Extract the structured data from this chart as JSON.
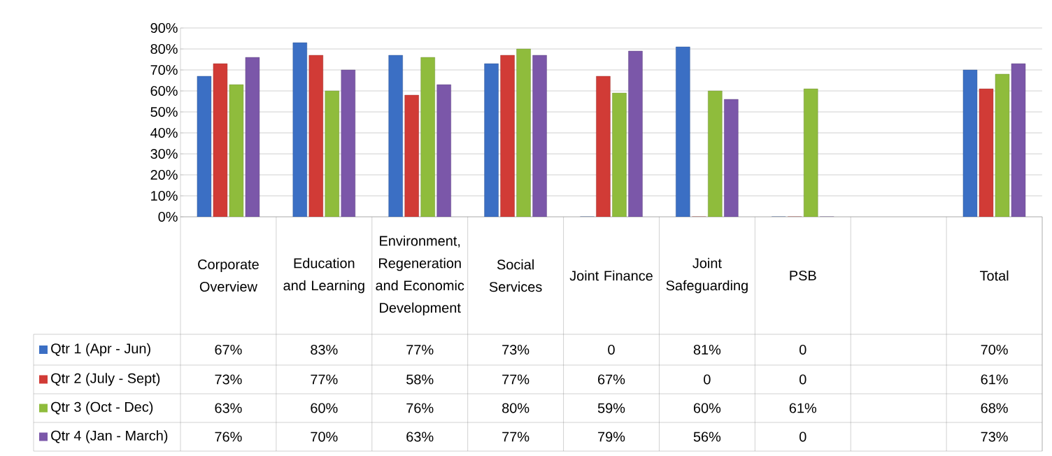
{
  "chart_data": {
    "type": "bar",
    "categories": [
      "Corporate Overview",
      "Education and Learning",
      "Environment, Regeneration and Economic Development",
      "Social Services",
      "Joint Finance",
      "Joint Safeguarding",
      "PSB",
      null,
      "Total"
    ],
    "series": [
      {
        "name": "Qtr 1 (Apr - Jun)",
        "color": "#3b6fc4",
        "values": [
          67,
          83,
          77,
          73,
          0,
          81,
          0,
          null,
          70
        ],
        "value_labels": [
          "67%",
          "83%",
          "77%",
          "73%",
          "0",
          "81%",
          "0",
          null,
          "70%"
        ]
      },
      {
        "name": "Qtr 2 (July - Sept)",
        "color": "#d13b36",
        "values": [
          73,
          77,
          58,
          77,
          67,
          0,
          0,
          null,
          61
        ],
        "value_labels": [
          "73%",
          "77%",
          "58%",
          "77%",
          "67%",
          "0",
          "0",
          null,
          "61%"
        ]
      },
      {
        "name": "Qtr 3 (Oct - Dec)",
        "color": "#8fbc3c",
        "values": [
          63,
          60,
          76,
          80,
          59,
          60,
          61,
          null,
          68
        ],
        "value_labels": [
          "63%",
          "60%",
          "76%",
          "80%",
          "59%",
          "60%",
          "61%",
          null,
          "68%"
        ]
      },
      {
        "name": "Qtr 4 (Jan - March)",
        "color": "#7b57a9",
        "values": [
          76,
          70,
          63,
          77,
          79,
          56,
          0,
          null,
          73
        ],
        "value_labels": [
          "76%",
          "70%",
          "63%",
          "77%",
          "79%",
          "56%",
          "0",
          null,
          "73%"
        ]
      }
    ],
    "ylim": [
      0,
      90
    ],
    "yticks": [
      {
        "value": 0,
        "label": "0%"
      },
      {
        "value": 10,
        "label": "10%"
      },
      {
        "value": 20,
        "label": "20%"
      },
      {
        "value": 30,
        "label": "30%"
      },
      {
        "value": 40,
        "label": "40%"
      },
      {
        "value": 50,
        "label": "50%"
      },
      {
        "value": 60,
        "label": "60%"
      },
      {
        "value": 70,
        "label": "70%"
      },
      {
        "value": 80,
        "label": "80%"
      },
      {
        "value": 90,
        "label": "90%"
      }
    ],
    "grid": "y",
    "legend": "bottom left"
  }
}
